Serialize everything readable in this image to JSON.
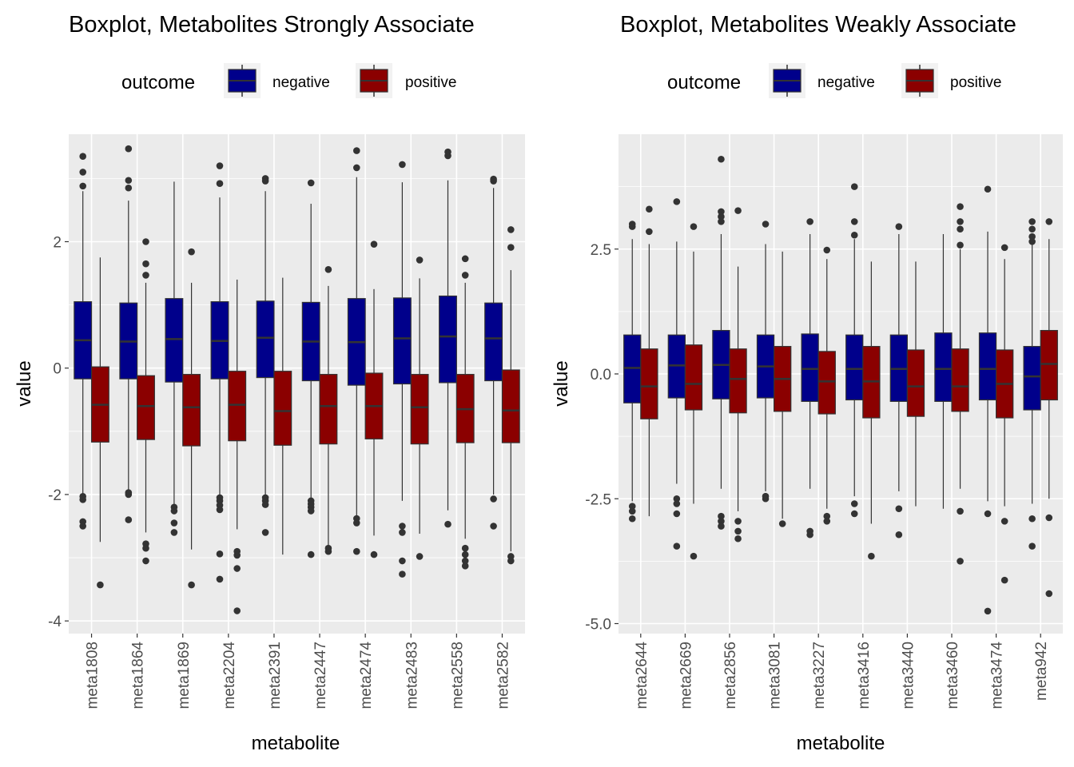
{
  "colors": {
    "negative": "#00008B",
    "positive": "#8B0000",
    "panel": "#EBEBEB",
    "grid": "#FFFFFF",
    "median": "#333333",
    "whisker": "#333333",
    "outlier": "#333333"
  },
  "chart_data": [
    {
      "type": "boxplot",
      "title": "Boxplot, Metabolites Strongly Associate",
      "xlabel": "metabolite",
      "ylabel": "value",
      "ylim": [
        -4.2,
        3.7
      ],
      "yticks": [
        2,
        0,
        -2,
        -4
      ],
      "ytick_labels": [
        "2",
        "0",
        "-2",
        "-4"
      ],
      "legend": {
        "title": "outcome",
        "position": "top",
        "entries": [
          "negative",
          "positive"
        ]
      },
      "categories": [
        "meta1808",
        "meta1864",
        "meta1869",
        "meta2204",
        "meta2391",
        "meta2447",
        "meta2474",
        "meta2483",
        "meta2558",
        "meta2582"
      ],
      "series": [
        {
          "name": "negative",
          "boxes": [
            {
              "q1": -0.17,
              "median": 0.44,
              "q3": 1.05,
              "low": -2.0,
              "high": 2.8,
              "outliers": [
                3.35,
                3.1,
                2.88,
                -2.03,
                -2.08,
                -2.43,
                -2.5
              ]
            },
            {
              "q1": -0.17,
              "median": 0.42,
              "q3": 1.03,
              "low": -1.93,
              "high": 2.65,
              "outliers": [
                3.47,
                2.97,
                2.85,
                -1.97,
                -2.0,
                -2.4
              ]
            },
            {
              "q1": -0.22,
              "median": 0.46,
              "q3": 1.1,
              "low": -2.15,
              "high": 2.95,
              "outliers": [
                -2.2,
                -2.26,
                -2.45,
                -2.6
              ]
            },
            {
              "q1": -0.17,
              "median": 0.43,
              "q3": 1.05,
              "low": -2.03,
              "high": 2.7,
              "outliers": [
                3.2,
                2.92,
                -2.05,
                -2.1,
                -2.17,
                -2.24,
                -2.94,
                -3.34
              ]
            },
            {
              "q1": -0.15,
              "median": 0.48,
              "q3": 1.06,
              "low": -2.0,
              "high": 2.8,
              "outliers": [
                3.0,
                2.96,
                -2.05,
                -2.1,
                -2.16,
                -2.6
              ]
            },
            {
              "q1": -0.2,
              "median": 0.42,
              "q3": 1.04,
              "low": -2.05,
              "high": 2.6,
              "outliers": [
                2.93,
                -2.1,
                -2.15,
                -2.2,
                -2.26,
                -2.95
              ]
            },
            {
              "q1": -0.27,
              "median": 0.41,
              "q3": 1.1,
              "low": -2.33,
              "high": 3.02,
              "outliers": [
                3.44,
                3.17,
                -2.38,
                -2.45,
                -2.9
              ]
            },
            {
              "q1": -0.25,
              "median": 0.47,
              "q3": 1.11,
              "low": -2.1,
              "high": 2.94,
              "outliers": [
                3.22,
                -2.5,
                -2.6,
                -3.05,
                -3.26
              ]
            },
            {
              "q1": -0.23,
              "median": 0.5,
              "q3": 1.14,
              "low": -2.25,
              "high": 2.97,
              "outliers": [
                3.42,
                3.36,
                -2.47
              ]
            },
            {
              "q1": -0.2,
              "median": 0.47,
              "q3": 1.03,
              "low": -2.0,
              "high": 2.85,
              "outliers": [
                2.99,
                2.96,
                -2.07,
                -2.5
              ]
            }
          ]
        },
        {
          "name": "positive",
          "boxes": [
            {
              "q1": -1.17,
              "median": -0.58,
              "q3": 0.02,
              "low": -2.75,
              "high": 1.75,
              "outliers": [
                -3.43
              ]
            },
            {
              "q1": -1.13,
              "median": -0.6,
              "q3": -0.12,
              "low": -2.6,
              "high": 1.35,
              "outliers": [
                2.0,
                1.65,
                1.47,
                -2.78,
                -2.85,
                -3.05
              ]
            },
            {
              "q1": -1.23,
              "median": -0.62,
              "q3": -0.1,
              "low": -2.87,
              "high": 1.35,
              "outliers": [
                1.84,
                -3.43
              ]
            },
            {
              "q1": -1.15,
              "median": -0.58,
              "q3": -0.05,
              "low": -2.55,
              "high": 1.4,
              "outliers": [
                -2.9,
                -2.96,
                -3.17,
                -3.84
              ]
            },
            {
              "q1": -1.22,
              "median": -0.68,
              "q3": -0.05,
              "low": -2.95,
              "high": 1.43,
              "outliers": []
            },
            {
              "q1": -1.2,
              "median": -0.6,
              "q3": -0.1,
              "low": -2.8,
              "high": 1.3,
              "outliers": [
                1.56,
                -2.85,
                -2.9
              ]
            },
            {
              "q1": -1.12,
              "median": -0.6,
              "q3": -0.08,
              "low": -2.65,
              "high": 1.25,
              "outliers": [
                1.96,
                -2.95
              ]
            },
            {
              "q1": -1.2,
              "median": -0.62,
              "q3": -0.1,
              "low": -2.62,
              "high": 1.42,
              "outliers": [
                1.71,
                -2.98
              ]
            },
            {
              "q1": -1.18,
              "median": -0.65,
              "q3": -0.1,
              "low": -2.7,
              "high": 1.35,
              "outliers": [
                1.73,
                1.47,
                -2.85,
                -2.95,
                -3.05,
                -3.13
              ]
            },
            {
              "q1": -1.18,
              "median": -0.67,
              "q3": -0.03,
              "low": -2.9,
              "high": 1.55,
              "outliers": [
                2.19,
                1.91,
                -2.98,
                -3.05
              ]
            }
          ]
        }
      ]
    },
    {
      "type": "boxplot",
      "title": "Boxplot, Metabolites Weakly Associate",
      "xlabel": "metabolite",
      "ylabel": "value",
      "ylim": [
        -5.2,
        4.8
      ],
      "yticks": [
        2.5,
        0,
        -2.5,
        -5
      ],
      "ytick_labels": [
        "2.5",
        "0.0",
        "-2.5",
        "-5.0"
      ],
      "legend": {
        "title": "outcome",
        "position": "top",
        "entries": [
          "negative",
          "positive"
        ]
      },
      "categories": [
        "meta2644",
        "meta2669",
        "meta2856",
        "meta3081",
        "meta3227",
        "meta3416",
        "meta3440",
        "meta3460",
        "meta3474",
        "meta942"
      ],
      "series": [
        {
          "name": "negative",
          "boxes": [
            {
              "q1": -0.58,
              "median": 0.12,
              "q3": 0.78,
              "low": -2.55,
              "high": 2.7,
              "outliers": [
                3.0,
                2.95,
                -2.65,
                -2.75,
                -2.9
              ]
            },
            {
              "q1": -0.48,
              "median": 0.17,
              "q3": 0.78,
              "low": -2.2,
              "high": 2.65,
              "outliers": [
                3.45,
                -2.5,
                -2.6,
                -2.8,
                -3.45
              ]
            },
            {
              "q1": -0.5,
              "median": 0.18,
              "q3": 0.87,
              "low": -2.3,
              "high": 2.8,
              "outliers": [
                4.3,
                3.25,
                3.15,
                3.05,
                -2.85,
                -2.95,
                -3.05
              ]
            },
            {
              "q1": -0.48,
              "median": 0.15,
              "q3": 0.78,
              "low": -2.35,
              "high": 2.6,
              "outliers": [
                3.0,
                -2.45,
                -2.5
              ]
            },
            {
              "q1": -0.55,
              "median": 0.1,
              "q3": 0.8,
              "low": -2.3,
              "high": 2.8,
              "outliers": [
                3.05,
                -3.15,
                -3.22
              ]
            },
            {
              "q1": -0.52,
              "median": 0.1,
              "q3": 0.78,
              "low": -2.45,
              "high": 2.7,
              "outliers": [
                3.75,
                3.05,
                2.78,
                -2.6,
                -2.8
              ]
            },
            {
              "q1": -0.55,
              "median": 0.1,
              "q3": 0.78,
              "low": -2.35,
              "high": 2.8,
              "outliers": [
                2.95,
                -2.7,
                -3.22
              ]
            },
            {
              "q1": -0.55,
              "median": 0.1,
              "q3": 0.82,
              "low": -2.7,
              "high": 2.8,
              "outliers": []
            },
            {
              "q1": -0.52,
              "median": 0.1,
              "q3": 0.82,
              "low": -2.55,
              "high": 2.85,
              "outliers": [
                3.7,
                -2.8,
                -4.75
              ]
            },
            {
              "q1": -0.72,
              "median": -0.05,
              "q3": 0.55,
              "low": -2.6,
              "high": 2.75,
              "outliers": [
                3.05,
                2.9,
                2.75,
                2.65,
                -2.9,
                -3.45
              ]
            }
          ]
        },
        {
          "name": "positive",
          "boxes": [
            {
              "q1": -0.9,
              "median": -0.25,
              "q3": 0.5,
              "low": -2.85,
              "high": 2.6,
              "outliers": [
                3.3,
                2.85
              ]
            },
            {
              "q1": -0.72,
              "median": -0.2,
              "q3": 0.58,
              "low": -2.6,
              "high": 2.45,
              "outliers": [
                2.95,
                -3.65
              ]
            },
            {
              "q1": -0.78,
              "median": -0.1,
              "q3": 0.5,
              "low": -2.75,
              "high": 2.15,
              "outliers": [
                3.27,
                -2.95,
                -3.15,
                -3.3
              ]
            },
            {
              "q1": -0.75,
              "median": -0.1,
              "q3": 0.55,
              "low": -2.9,
              "high": 2.45,
              "outliers": [
                -3.0
              ]
            },
            {
              "q1": -0.8,
              "median": -0.15,
              "q3": 0.45,
              "low": -2.7,
              "high": 2.3,
              "outliers": [
                2.48,
                -2.85,
                -2.95
              ]
            },
            {
              "q1": -0.88,
              "median": -0.15,
              "q3": 0.55,
              "low": -3.0,
              "high": 2.25,
              "outliers": [
                -3.65
              ]
            },
            {
              "q1": -0.85,
              "median": -0.25,
              "q3": 0.48,
              "low": -2.65,
              "high": 2.25,
              "outliers": []
            },
            {
              "q1": -0.75,
              "median": -0.25,
              "q3": 0.5,
              "low": -2.3,
              "high": 2.5,
              "outliers": [
                3.35,
                3.05,
                2.9,
                2.58,
                -2.75,
                -3.75
              ]
            },
            {
              "q1": -0.88,
              "median": -0.2,
              "q3": 0.48,
              "low": -2.65,
              "high": 2.3,
              "outliers": [
                2.53,
                -2.95,
                -4.13
              ]
            },
            {
              "q1": -0.52,
              "median": 0.2,
              "q3": 0.87,
              "low": -2.5,
              "high": 2.7,
              "outliers": [
                3.05,
                -2.88,
                -4.4
              ]
            }
          ]
        }
      ]
    }
  ]
}
